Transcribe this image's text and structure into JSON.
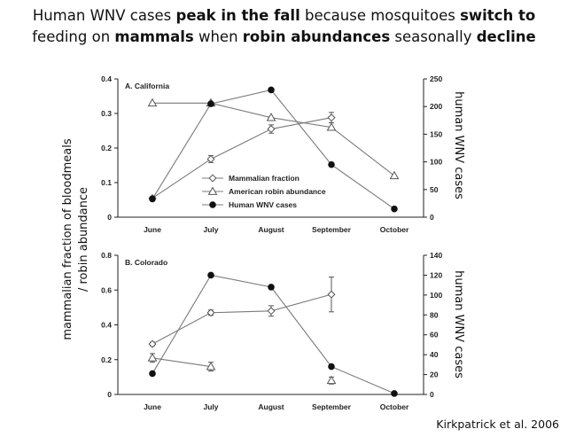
{
  "headline": {
    "line1_a": "Human WNV cases ",
    "line1_b": "peak in the fall",
    "line1_c": " because mosquitoes ",
    "line1_d": "switch to",
    "line2_a": "feeding on ",
    "line2_b": "mammals",
    "line2_c": " when ",
    "line2_d": "robin abundances",
    "line2_e": " seasonally ",
    "line2_f": "decline"
  },
  "credit": "Kirkpatrick et al. 2006",
  "left_axis_label_line1": "mammalian fraction of bloodmeals",
  "left_axis_label_line2": "/ robin abundance",
  "right_axis_label": "human WNV cases",
  "chart_data": [
    {
      "type": "line",
      "title": "A. California",
      "categories": [
        "June",
        "July",
        "August",
        "September",
        "October"
      ],
      "ylim": [
        0,
        0.4
      ],
      "yticks": [
        "0",
        "0.1",
        "0.2",
        "0.3",
        "0.4"
      ],
      "ylim_right": [
        0,
        250
      ],
      "yticks_right": [
        "0",
        "50",
        "100",
        "150",
        "200",
        "250"
      ],
      "legend_position": "center",
      "series": [
        {
          "name": "Mammalian fraction",
          "marker": "diamond",
          "axis": "left",
          "values": [
            0.055,
            0.168,
            0.255,
            0.288,
            null
          ],
          "errors": [
            0.005,
            0.01,
            0.012,
            0.015,
            null
          ]
        },
        {
          "name": "American robin abundance",
          "marker": "triangle",
          "axis": "left",
          "values": [
            0.33,
            0.33,
            0.288,
            0.26,
            0.12
          ],
          "errors": [
            null,
            null,
            null,
            null,
            null
          ]
        },
        {
          "name": "Human WNV cases",
          "marker": "circle",
          "axis": "right",
          "values": [
            33,
            205,
            230,
            95,
            15
          ],
          "errors": [
            null,
            null,
            null,
            null,
            null
          ]
        }
      ]
    },
    {
      "type": "line",
      "title": "B. Colorado",
      "categories": [
        "June",
        "July",
        "August",
        "September",
        "October"
      ],
      "ylim": [
        0,
        0.8
      ],
      "yticks": [
        "0",
        "0.2",
        "0.4",
        "0.6",
        "0.8"
      ],
      "ylim_right": [
        0,
        140
      ],
      "yticks_right": [
        "0",
        "20",
        "40",
        "60",
        "80",
        "100",
        "120",
        "140"
      ],
      "series": [
        {
          "name": "Mammalian fraction",
          "marker": "diamond",
          "axis": "left",
          "values": [
            0.29,
            0.47,
            0.48,
            0.575,
            null
          ],
          "errors": [
            0.01,
            0.015,
            0.03,
            0.1,
            null
          ]
        },
        {
          "name": "American robin abundance",
          "marker": "triangle",
          "axis": "left",
          "values": [
            0.21,
            0.16,
            null,
            0.08,
            null
          ],
          "errors": [
            0.025,
            0.025,
            null,
            0.02,
            null
          ]
        },
        {
          "name": "Human WNV cases",
          "marker": "circle",
          "axis": "right",
          "values": [
            21,
            120,
            108,
            28,
            1
          ],
          "errors": [
            null,
            null,
            null,
            null,
            null
          ]
        }
      ]
    }
  ]
}
